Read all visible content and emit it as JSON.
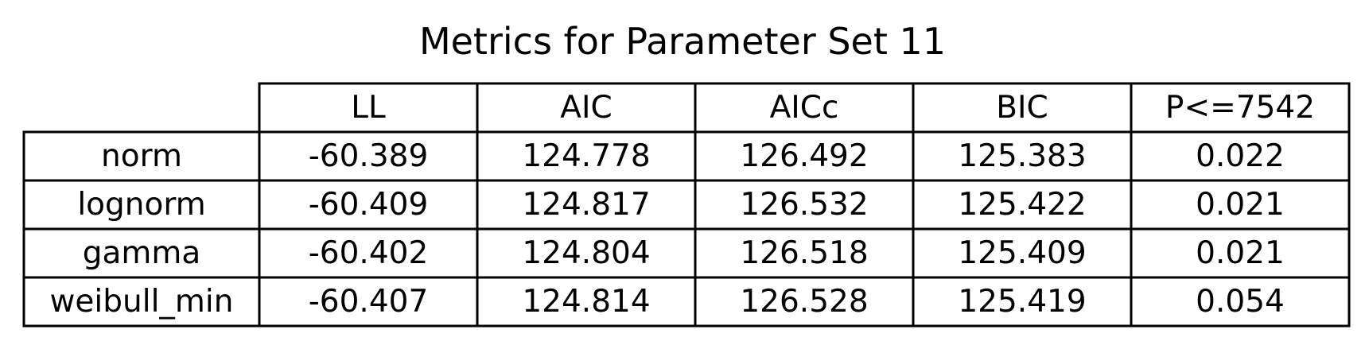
{
  "chart_data": {
    "type": "table",
    "title": "Metrics for Parameter Set 11",
    "columns": [
      "LL",
      "AIC",
      "AICc",
      "BIC",
      "P<=7542"
    ],
    "rows": [
      {
        "label": "norm",
        "values": [
          "-60.389",
          "124.778",
          "126.492",
          "125.383",
          "0.022"
        ]
      },
      {
        "label": "lognorm",
        "values": [
          "-60.409",
          "124.817",
          "126.532",
          "125.422",
          "0.021"
        ]
      },
      {
        "label": "gamma",
        "values": [
          "-60.402",
          "124.804",
          "126.518",
          "125.409",
          "0.021"
        ]
      },
      {
        "label": "weibull_min",
        "values": [
          "-60.407",
          "124.814",
          "126.528",
          "125.419",
          "0.054"
        ]
      }
    ]
  }
}
